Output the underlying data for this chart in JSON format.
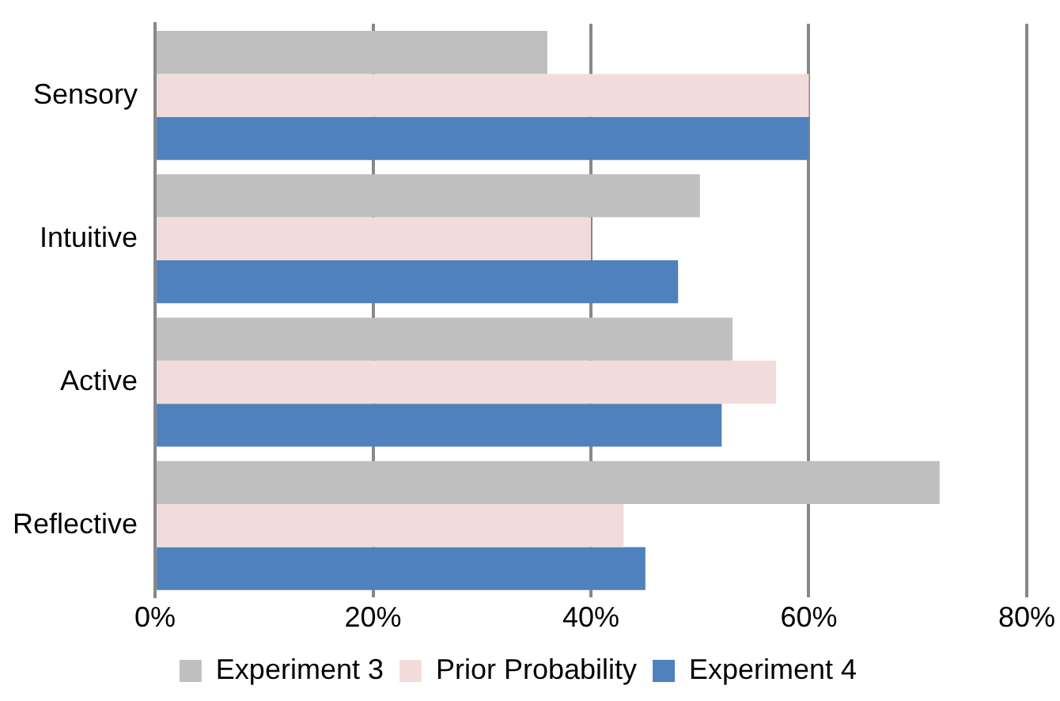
{
  "chart_data": {
    "type": "bar",
    "orientation": "horizontal",
    "categories": [
      "Sensory",
      "Intuitive",
      "Active",
      "Reflective"
    ],
    "series": [
      {
        "name": "Experiment 3",
        "color": "#bfbfbf",
        "values": [
          36,
          50,
          53,
          72
        ]
      },
      {
        "name": "Prior Probability",
        "color": "#f2dcdb",
        "values": [
          60,
          40,
          57,
          43
        ]
      },
      {
        "name": "Experiment 4",
        "color": "#4f81bd",
        "values": [
          60,
          48,
          52,
          45
        ]
      }
    ],
    "xlim": [
      0,
      80
    ],
    "xticks": [
      {
        "value": 0,
        "label": "0%"
      },
      {
        "value": 20,
        "label": "20%"
      },
      {
        "value": 40,
        "label": "40%"
      },
      {
        "value": 60,
        "label": "60%"
      },
      {
        "value": 80,
        "label": "80%"
      }
    ],
    "grid": "x",
    "legend": "bottom"
  }
}
